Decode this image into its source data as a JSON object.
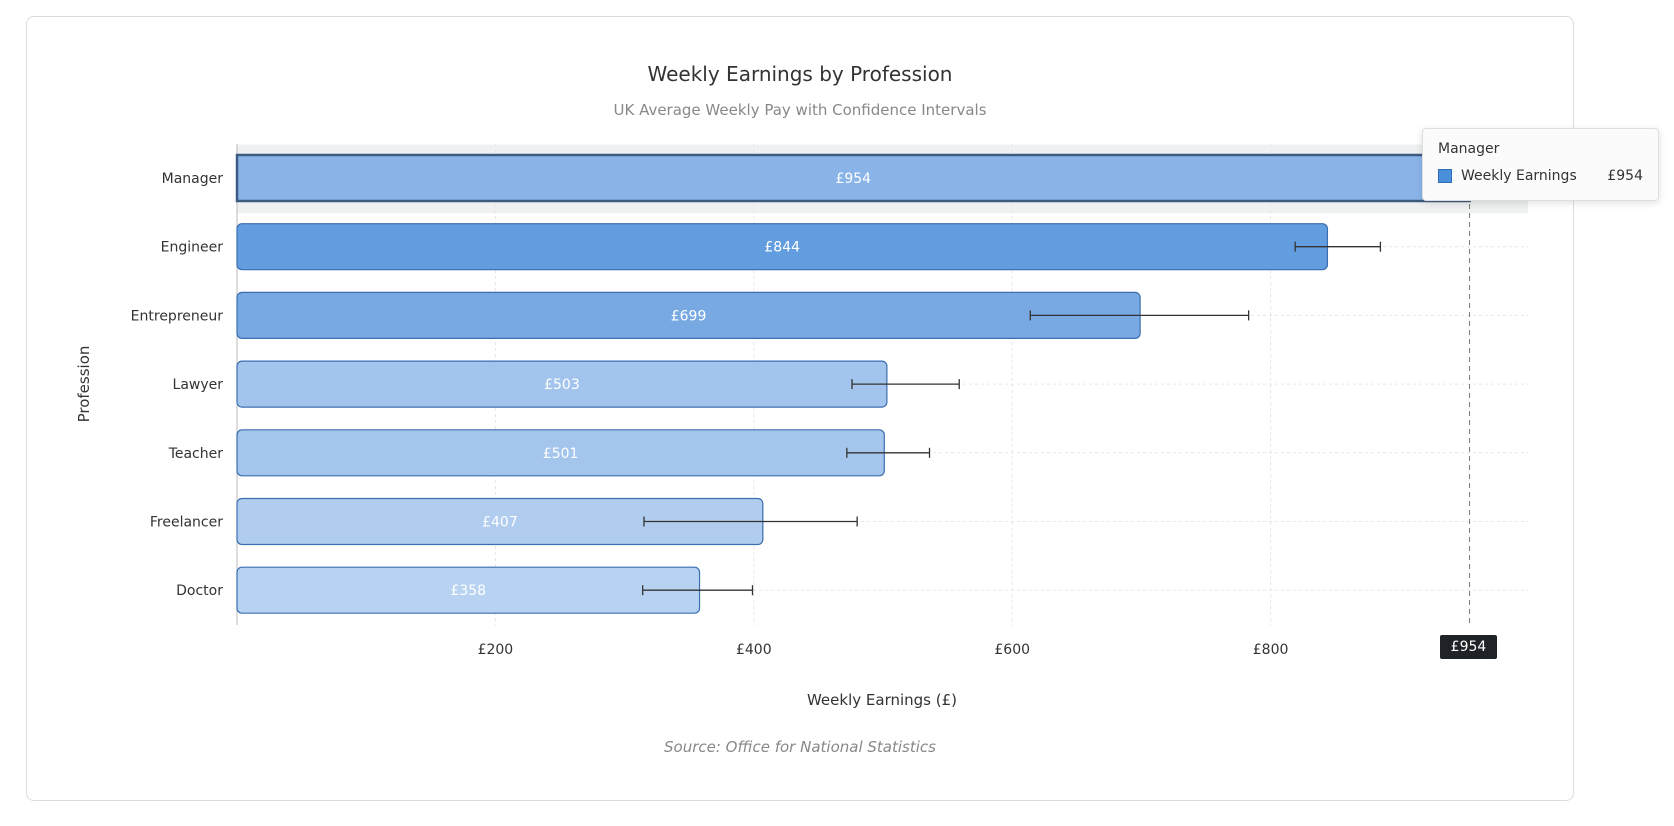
{
  "chart_data": {
    "type": "bar",
    "orientation": "horizontal",
    "title": "Weekly Earnings by Profession",
    "subtitle": "UK Average Weekly Pay with Confidence Intervals",
    "xlabel": "Weekly Earnings (£)",
    "ylabel": "Profession",
    "source": "Source: Office for National Statistics",
    "xlim": [
      0,
      1000
    ],
    "xticks": [
      200,
      400,
      600,
      800
    ],
    "xtick_labels": [
      "£200",
      "£400",
      "£600",
      "£800"
    ],
    "grid": true,
    "categories": [
      "Manager",
      "Engineer",
      "Entrepreneur",
      "Lawyer",
      "Teacher",
      "Freelancer",
      "Doctor"
    ],
    "series": [
      {
        "name": "Weekly Earnings",
        "values": [
          954,
          844,
          699,
          503,
          501,
          407,
          358
        ],
        "labels": [
          "£954",
          "£844",
          "£699",
          "£503",
          "£501",
          "£407",
          "£358"
        ],
        "ci_low": [
          null,
          819,
          614,
          476,
          472,
          315,
          314
        ],
        "ci_high": [
          null,
          885,
          783,
          559,
          536,
          480,
          399
        ],
        "colors": [
          "#8ab4e8",
          "#629ddf",
          "#79a9e3",
          "#a3c4ec",
          "#a4c5ec",
          "#b0cdef",
          "#b8d3f1"
        ]
      }
    ],
    "highlighted_category": "Manager"
  },
  "tooltip": {
    "title": "Manager",
    "series": "Weekly Earnings",
    "value": "£954",
    "color": "#4a8fdc"
  },
  "crosshair_label": "£954"
}
